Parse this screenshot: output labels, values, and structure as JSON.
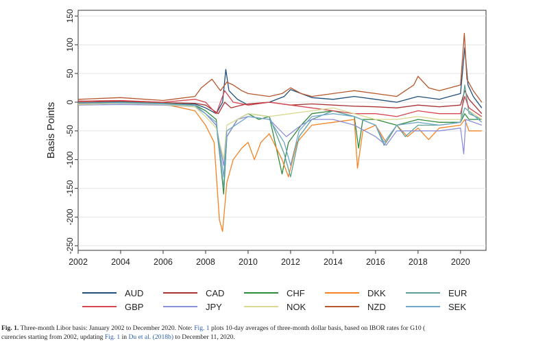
{
  "chart_data": {
    "type": "line",
    "ylabel": "Basis Points",
    "xlabel": "",
    "xlim": [
      2002,
      2021.2
    ],
    "ylim": [
      -258,
      160
    ],
    "x_ticks": [
      2002,
      2004,
      2006,
      2008,
      2010,
      2012,
      2014,
      2016,
      2018,
      2020
    ],
    "x_tick_labels": [
      "2002",
      "2004",
      "2006",
      "2008",
      "2010",
      "2012",
      "2014",
      "2016",
      "2018",
      "2020"
    ],
    "y_ticks": [
      150,
      100,
      50,
      0,
      -50,
      -100,
      -150,
      -200,
      -250
    ],
    "y_tick_labels": [
      "150",
      "100",
      "50",
      "0",
      "-50",
      "-100",
      "-150",
      "-200",
      "-250"
    ],
    "grid": "horizontal",
    "legend_position": "bottom",
    "series": [
      {
        "name": "AUD",
        "color": "#1f4e79",
        "points": [
          [
            2002,
            0
          ],
          [
            2004,
            1
          ],
          [
            2006,
            -1
          ],
          [
            2007.5,
            -3
          ],
          [
            2008,
            -10
          ],
          [
            2008.5,
            -20
          ],
          [
            2008.8,
            0
          ],
          [
            2008.95,
            57
          ],
          [
            2009.1,
            20
          ],
          [
            2009.5,
            5
          ],
          [
            2010,
            -5
          ],
          [
            2011,
            0
          ],
          [
            2011.7,
            10
          ],
          [
            2012,
            22
          ],
          [
            2012.5,
            15
          ],
          [
            2013,
            8
          ],
          [
            2014,
            5
          ],
          [
            2015,
            10
          ],
          [
            2016,
            5
          ],
          [
            2017,
            0
          ],
          [
            2018,
            10
          ],
          [
            2019,
            5
          ],
          [
            2020,
            15
          ],
          [
            2020.2,
            95
          ],
          [
            2020.35,
            30
          ],
          [
            2020.6,
            10
          ],
          [
            2021,
            -10
          ]
        ]
      },
      {
        "name": "CAD",
        "color": "#a83232",
        "points": [
          [
            2002,
            0
          ],
          [
            2004,
            2
          ],
          [
            2006,
            -1
          ],
          [
            2007.5,
            -2
          ],
          [
            2008,
            -5
          ],
          [
            2008.6,
            -20
          ],
          [
            2008.9,
            0
          ],
          [
            2009.2,
            -10
          ],
          [
            2009.7,
            -5
          ],
          [
            2010,
            -3
          ],
          [
            2011,
            0
          ],
          [
            2012,
            -5
          ],
          [
            2013,
            -3
          ],
          [
            2014,
            -5
          ],
          [
            2015,
            -7
          ],
          [
            2016,
            -8
          ],
          [
            2017,
            -10
          ],
          [
            2018,
            -5
          ],
          [
            2019,
            -8
          ],
          [
            2020,
            -5
          ],
          [
            2020.2,
            20
          ],
          [
            2020.4,
            5
          ],
          [
            2021,
            -20
          ]
        ]
      },
      {
        "name": "CHF",
        "color": "#2e8b3a",
        "points": [
          [
            2002,
            -2
          ],
          [
            2004,
            0
          ],
          [
            2006,
            -2
          ],
          [
            2007.5,
            -5
          ],
          [
            2008,
            -15
          ],
          [
            2008.5,
            -30
          ],
          [
            2008.85,
            -160
          ],
          [
            2009,
            -60
          ],
          [
            2009.5,
            -30
          ],
          [
            2010,
            -20
          ],
          [
            2010.5,
            -30
          ],
          [
            2011,
            -25
          ],
          [
            2011.6,
            -125
          ],
          [
            2011.9,
            -70
          ],
          [
            2012.5,
            -40
          ],
          [
            2013,
            -20
          ],
          [
            2014,
            -15
          ],
          [
            2015,
            -25
          ],
          [
            2015.2,
            -80
          ],
          [
            2015.4,
            -30
          ],
          [
            2016,
            -30
          ],
          [
            2017,
            -40
          ],
          [
            2018,
            -30
          ],
          [
            2019,
            -35
          ],
          [
            2020,
            -35
          ],
          [
            2020.2,
            -20
          ],
          [
            2020.4,
            -30
          ],
          [
            2021,
            -30
          ]
        ]
      },
      {
        "name": "DKK",
        "color": "#f58220",
        "points": [
          [
            2002,
            -3
          ],
          [
            2004,
            -1
          ],
          [
            2006,
            -3
          ],
          [
            2007.5,
            -15
          ],
          [
            2008,
            -40
          ],
          [
            2008.4,
            -70
          ],
          [
            2008.65,
            -205
          ],
          [
            2008.8,
            -225
          ],
          [
            2009,
            -140
          ],
          [
            2009.3,
            -100
          ],
          [
            2009.7,
            -80
          ],
          [
            2010,
            -70
          ],
          [
            2010.3,
            -100
          ],
          [
            2010.6,
            -70
          ],
          [
            2011,
            -55
          ],
          [
            2011.6,
            -100
          ],
          [
            2011.9,
            -130
          ],
          [
            2012.3,
            -70
          ],
          [
            2013,
            -40
          ],
          [
            2014,
            -35
          ],
          [
            2015,
            -30
          ],
          [
            2015.15,
            -115
          ],
          [
            2015.4,
            -50
          ],
          [
            2016,
            -40
          ],
          [
            2016.5,
            -70
          ],
          [
            2017,
            -40
          ],
          [
            2017.5,
            -60
          ],
          [
            2018,
            -45
          ],
          [
            2018.5,
            -65
          ],
          [
            2019,
            -45
          ],
          [
            2020,
            -40
          ],
          [
            2020.2,
            -30
          ],
          [
            2020.4,
            -50
          ],
          [
            2021,
            -50
          ]
        ]
      },
      {
        "name": "EUR",
        "color": "#5a9e94",
        "points": [
          [
            2002,
            -1
          ],
          [
            2004,
            0
          ],
          [
            2006,
            -2
          ],
          [
            2007.5,
            -5
          ],
          [
            2008,
            -20
          ],
          [
            2008.5,
            -40
          ],
          [
            2008.85,
            -150
          ],
          [
            2009,
            -60
          ],
          [
            2009.5,
            -30
          ],
          [
            2010,
            -20
          ],
          [
            2011,
            -25
          ],
          [
            2011.7,
            -90
          ],
          [
            2012,
            -130
          ],
          [
            2012.4,
            -60
          ],
          [
            2013,
            -30
          ],
          [
            2014,
            -15
          ],
          [
            2015,
            -25
          ],
          [
            2016,
            -40
          ],
          [
            2016.4,
            -75
          ],
          [
            2017,
            -40
          ],
          [
            2017.4,
            -60
          ],
          [
            2018,
            -40
          ],
          [
            2019,
            -40
          ],
          [
            2020,
            -35
          ],
          [
            2020.2,
            30
          ],
          [
            2020.4,
            -20
          ],
          [
            2021,
            -30
          ]
        ]
      },
      {
        "name": "GBP",
        "color": "#d64550",
        "points": [
          [
            2002,
            2
          ],
          [
            2004,
            3
          ],
          [
            2006,
            0
          ],
          [
            2007.5,
            5
          ],
          [
            2008,
            0
          ],
          [
            2008.5,
            -20
          ],
          [
            2008.9,
            20
          ],
          [
            2009.3,
            0
          ],
          [
            2010,
            -5
          ],
          [
            2011,
            0
          ],
          [
            2012,
            -5
          ],
          [
            2013,
            -10
          ],
          [
            2014,
            -15
          ],
          [
            2015,
            -20
          ],
          [
            2016,
            -20
          ],
          [
            2017,
            -25
          ],
          [
            2018,
            -15
          ],
          [
            2019,
            -20
          ],
          [
            2020,
            -20
          ],
          [
            2020.2,
            10
          ],
          [
            2020.4,
            -10
          ],
          [
            2021,
            -25
          ]
        ]
      },
      {
        "name": "JPY",
        "color": "#8a8fd9",
        "points": [
          [
            2002,
            -5
          ],
          [
            2004,
            -4
          ],
          [
            2006,
            -5
          ],
          [
            2007.5,
            -8
          ],
          [
            2008,
            -20
          ],
          [
            2008.5,
            -40
          ],
          [
            2008.85,
            -110
          ],
          [
            2009,
            -60
          ],
          [
            2009.5,
            -30
          ],
          [
            2010,
            -25
          ],
          [
            2011,
            -30
          ],
          [
            2011.8,
            -60
          ],
          [
            2012.5,
            -40
          ],
          [
            2013,
            -30
          ],
          [
            2014,
            -30
          ],
          [
            2015,
            -40
          ],
          [
            2016,
            -60
          ],
          [
            2016.5,
            -75
          ],
          [
            2017,
            -50
          ],
          [
            2018,
            -50
          ],
          [
            2019,
            -50
          ],
          [
            2020,
            -45
          ],
          [
            2020.15,
            -90
          ],
          [
            2020.25,
            -30
          ],
          [
            2021,
            -40
          ]
        ]
      },
      {
        "name": "NOK",
        "color": "#d8d890",
        "points": [
          [
            2002,
            -4
          ],
          [
            2004,
            -2
          ],
          [
            2006,
            -4
          ],
          [
            2007.5,
            -8
          ],
          [
            2008,
            -25
          ],
          [
            2008.5,
            -45
          ],
          [
            2008.85,
            -100
          ],
          [
            2009,
            -40
          ],
          [
            2010,
            -20
          ],
          [
            2011,
            -25
          ],
          [
            2012,
            -20
          ],
          [
            2013,
            -15
          ],
          [
            2014,
            -10
          ],
          [
            2015,
            -20
          ],
          [
            2016,
            -30
          ],
          [
            2017,
            -30
          ],
          [
            2018,
            -25
          ],
          [
            2019,
            -30
          ],
          [
            2020,
            -30
          ],
          [
            2020.2,
            -10
          ],
          [
            2021,
            -30
          ]
        ]
      },
      {
        "name": "NZD",
        "color": "#b5562a",
        "points": [
          [
            2002,
            5
          ],
          [
            2004,
            8
          ],
          [
            2006,
            3
          ],
          [
            2007.5,
            10
          ],
          [
            2007.8,
            25
          ],
          [
            2008.3,
            40
          ],
          [
            2008.7,
            20
          ],
          [
            2009,
            35
          ],
          [
            2009.3,
            30
          ],
          [
            2009.7,
            20
          ],
          [
            2010,
            15
          ],
          [
            2011,
            10
          ],
          [
            2011.6,
            15
          ],
          [
            2012,
            25
          ],
          [
            2012.5,
            15
          ],
          [
            2013,
            10
          ],
          [
            2014,
            15
          ],
          [
            2015,
            20
          ],
          [
            2016,
            15
          ],
          [
            2017,
            10
          ],
          [
            2017.8,
            30
          ],
          [
            2018,
            45
          ],
          [
            2018.5,
            25
          ],
          [
            2019,
            20
          ],
          [
            2020,
            30
          ],
          [
            2020.18,
            120
          ],
          [
            2020.3,
            40
          ],
          [
            2020.6,
            20
          ],
          [
            2021,
            0
          ]
        ]
      },
      {
        "name": "SEK",
        "color": "#6fa6c9",
        "points": [
          [
            2002,
            -2
          ],
          [
            2004,
            -1
          ],
          [
            2006,
            -3
          ],
          [
            2007.5,
            -6
          ],
          [
            2008,
            -20
          ],
          [
            2008.5,
            -35
          ],
          [
            2008.85,
            -130
          ],
          [
            2009,
            -50
          ],
          [
            2010,
            -25
          ],
          [
            2011,
            -30
          ],
          [
            2011.7,
            -70
          ],
          [
            2012,
            -110
          ],
          [
            2012.4,
            -50
          ],
          [
            2013,
            -25
          ],
          [
            2014,
            -20
          ],
          [
            2015,
            -25
          ],
          [
            2016,
            -40
          ],
          [
            2016.4,
            -70
          ],
          [
            2017,
            -40
          ],
          [
            2018,
            -35
          ],
          [
            2019,
            -40
          ],
          [
            2020,
            -35
          ],
          [
            2020.2,
            -10
          ],
          [
            2021,
            -35
          ]
        ]
      }
    ]
  },
  "caption": {
    "label": "Fig. 1.",
    "line1_a": " Three-month Libor basis: January 2002 to December 2020. Note: ",
    "line1_ref": "Fig. 1",
    "line1_b": " plots 10-day averages of three-month dollar basis, based on IBOR rates for G10 (",
    "line2_a": "curencies starting from 2002, updating ",
    "line2_ref1": "Fig. 1",
    "line2_b": " in ",
    "line2_ref2": "Du et al. (2018b)",
    "line2_c": " to December 11, 2020."
  }
}
